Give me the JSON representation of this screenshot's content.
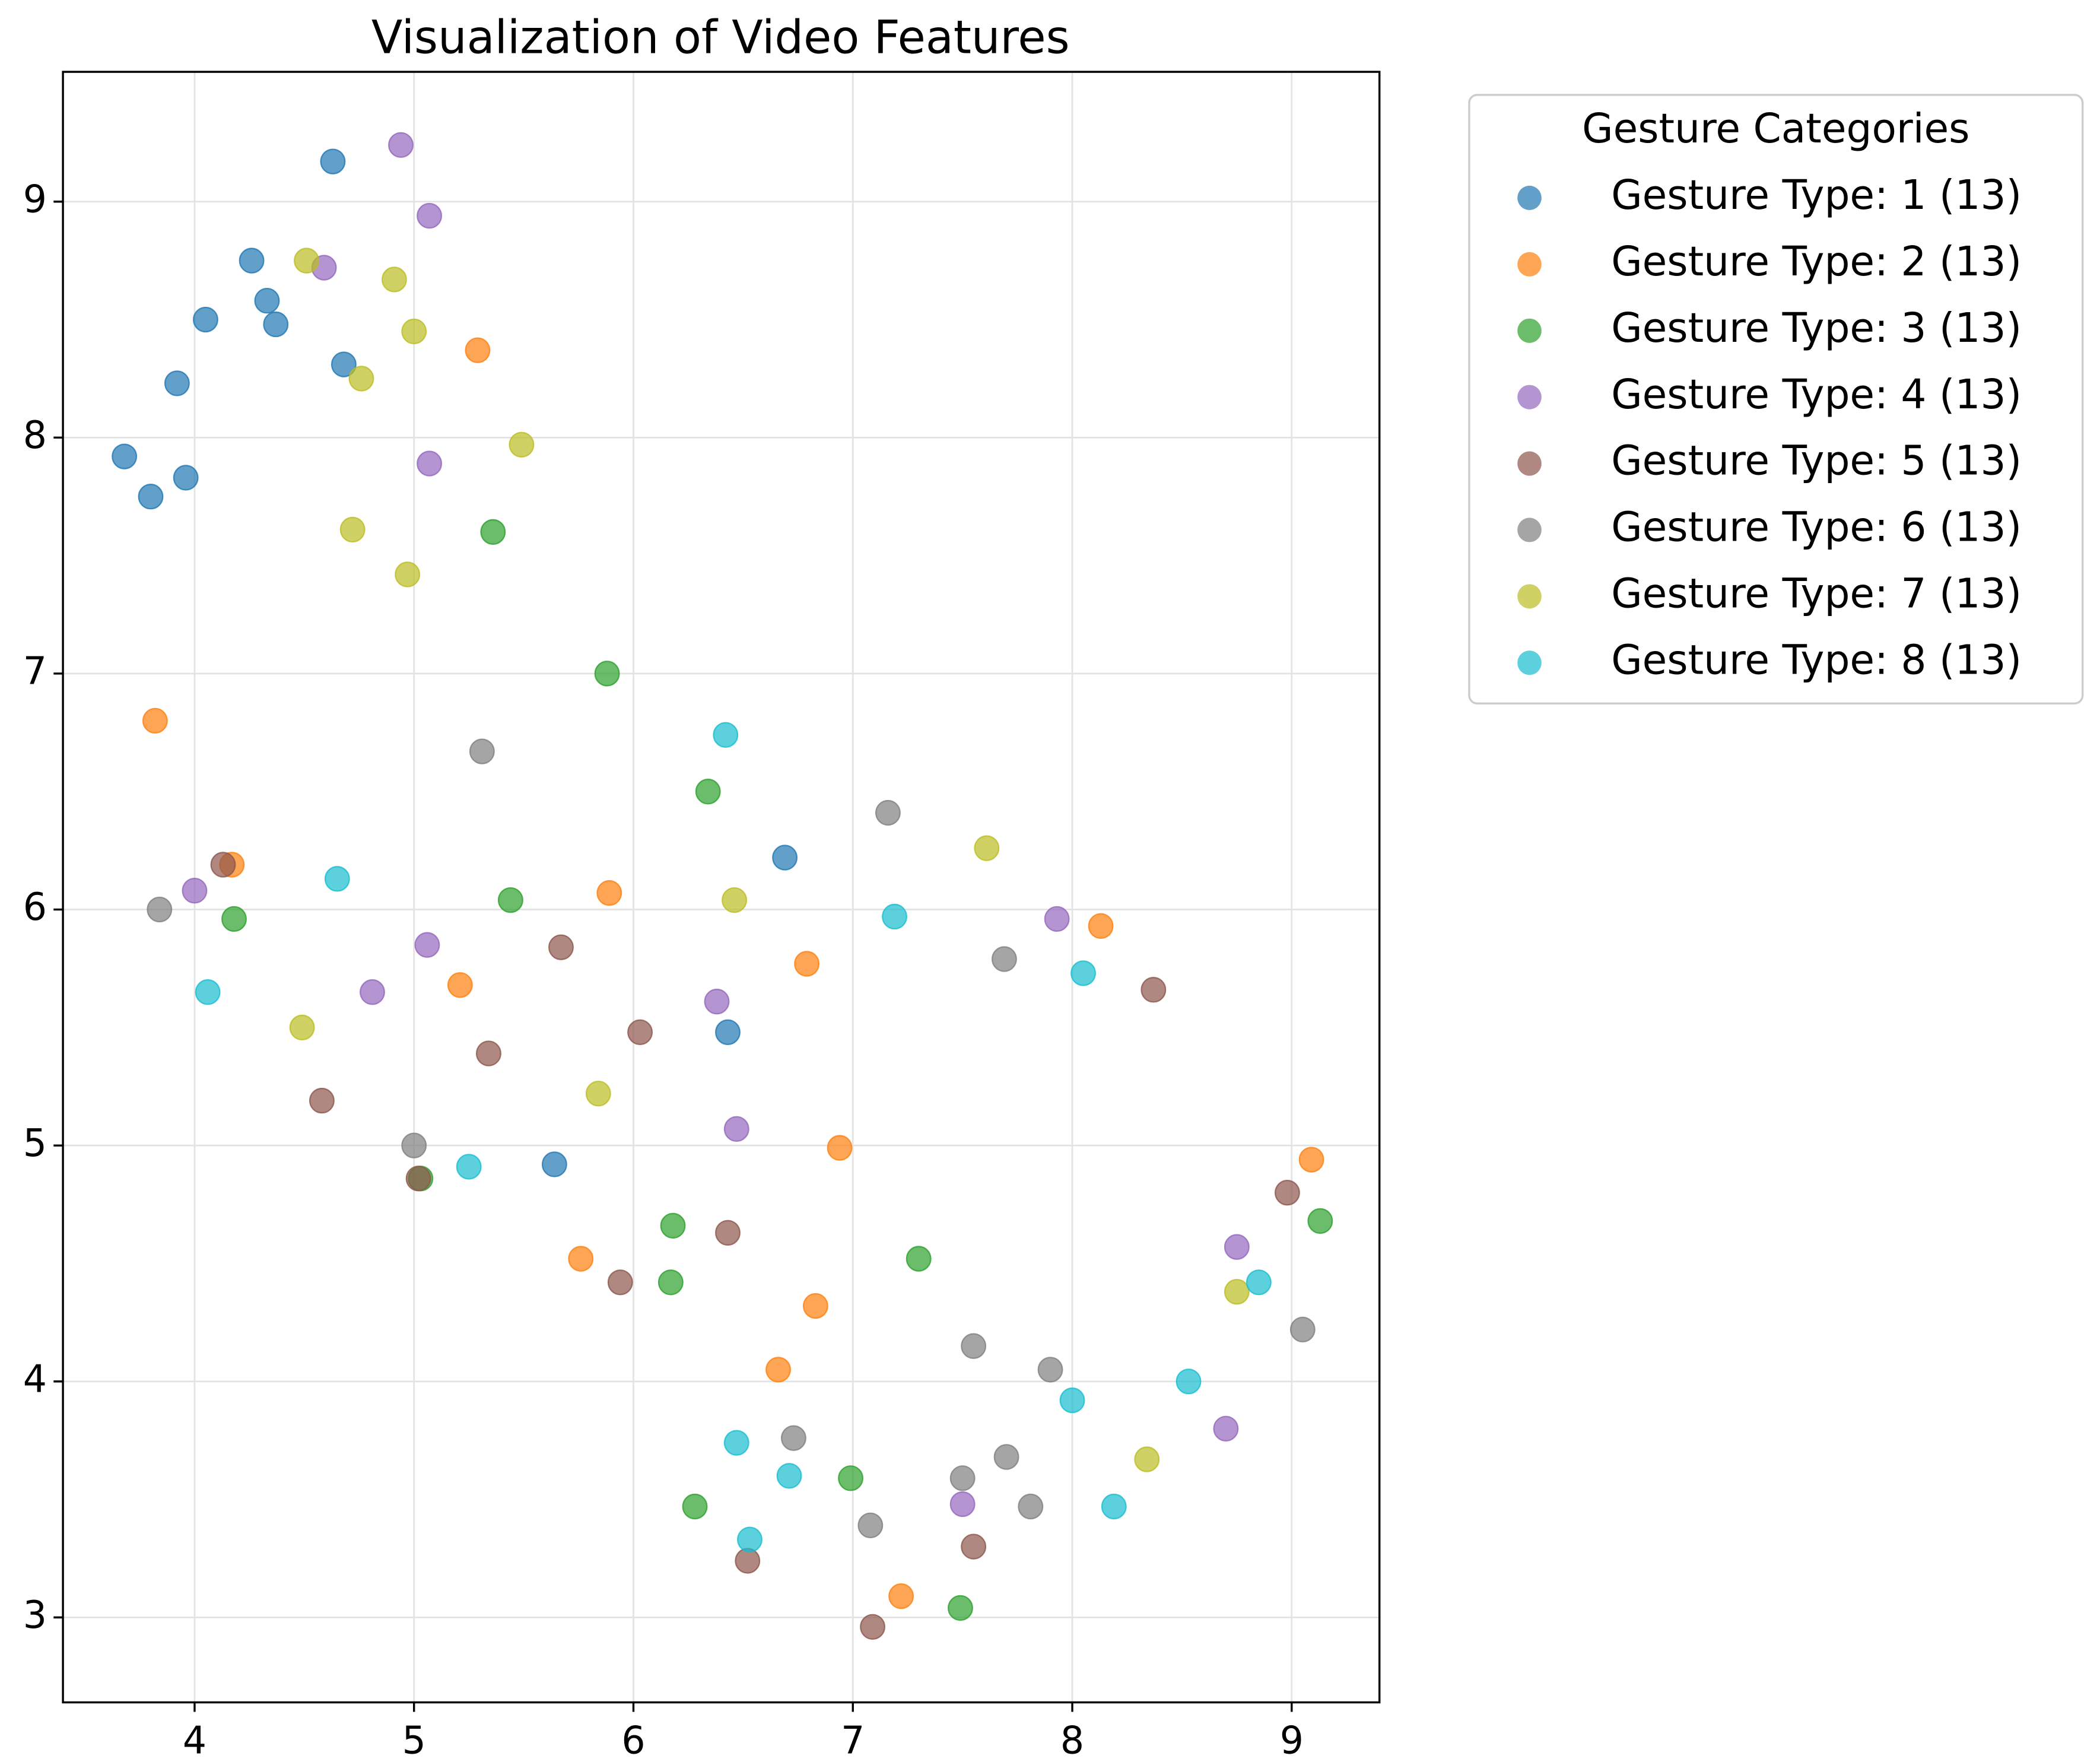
{
  "chart_data": {
    "type": "scatter",
    "title": "Visualization of Video Features",
    "legend_title": "Gesture Categories",
    "legend_position": "outside upper right",
    "grid": true,
    "xlim": [
      3.4,
      9.4
    ],
    "xticks": [
      4,
      5,
      6,
      7,
      8,
      9
    ],
    "ylim": [
      2.64,
      9.55
    ],
    "yticks": [
      3,
      4,
      5,
      6,
      7,
      8,
      9
    ],
    "series": [
      {
        "name": "Gesture Type: 1 (13)",
        "color": "#1f77b4",
        "x": [
          4.63,
          4.26,
          4.33,
          4.05,
          4.37,
          4.68,
          3.92,
          3.68,
          3.96,
          3.8,
          6.69,
          6.43,
          5.64
        ],
        "y": [
          9.17,
          8.75,
          8.58,
          8.5,
          8.48,
          8.31,
          8.23,
          7.92,
          7.83,
          7.75,
          6.22,
          5.48,
          4.92
        ]
      },
      {
        "name": "Gesture Type: 2 (13)",
        "color": "#ff7f0e",
        "x": [
          5.29,
          3.82,
          4.17,
          5.89,
          5.21,
          6.79,
          8.13,
          6.94,
          9.09,
          5.76,
          6.83,
          6.66,
          7.22
        ],
        "y": [
          8.37,
          6.8,
          6.19,
          6.07,
          5.68,
          5.77,
          5.93,
          4.99,
          4.94,
          4.52,
          4.32,
          4.05,
          3.09
        ]
      },
      {
        "name": "Gesture Type: 3 (13)",
        "color": "#2ca02c",
        "x": [
          5.36,
          5.88,
          6.34,
          5.44,
          4.18,
          5.03,
          6.18,
          6.17,
          7.3,
          9.13,
          6.99,
          6.28,
          7.49
        ],
        "y": [
          7.6,
          7.0,
          6.5,
          6.04,
          5.96,
          4.86,
          4.66,
          4.42,
          4.52,
          4.68,
          3.59,
          3.47,
          3.04
        ]
      },
      {
        "name": "Gesture Type: 4 (13)",
        "color": "#9467bd",
        "x": [
          4.94,
          5.07,
          4.59,
          5.07,
          4.0,
          5.06,
          4.81,
          6.38,
          7.93,
          6.47,
          8.75,
          8.7,
          7.5
        ],
        "y": [
          9.24,
          8.94,
          8.72,
          7.89,
          6.08,
          5.85,
          5.65,
          5.61,
          5.96,
          5.07,
          4.57,
          3.8,
          3.48
        ]
      },
      {
        "name": "Gesture Type: 5 (13)",
        "color": "#8c564b",
        "x": [
          4.13,
          5.67,
          6.03,
          5.34,
          4.58,
          5.02,
          5.94,
          6.43,
          8.37,
          8.98,
          7.55,
          6.52,
          7.09
        ],
        "y": [
          6.19,
          5.84,
          5.48,
          5.39,
          5.19,
          4.86,
          4.42,
          4.63,
          5.66,
          4.8,
          3.3,
          3.24,
          2.96
        ]
      },
      {
        "name": "Gesture Type: 6 (13)",
        "color": "#7f7f7f",
        "x": [
          5.31,
          7.16,
          3.84,
          7.69,
          5.0,
          7.55,
          7.9,
          9.05,
          6.73,
          7.7,
          7.5,
          7.81,
          7.08
        ],
        "y": [
          6.67,
          6.41,
          6.0,
          5.79,
          5.0,
          4.15,
          4.05,
          4.22,
          3.76,
          3.68,
          3.59,
          3.47,
          3.39
        ]
      },
      {
        "name": "Gesture Type: 7 (13)",
        "color": "#bcbd22",
        "x": [
          4.51,
          4.91,
          5.0,
          4.76,
          5.49,
          4.72,
          4.97,
          7.61,
          6.46,
          4.49,
          5.84,
          8.75,
          8.34
        ],
        "y": [
          8.75,
          8.67,
          8.45,
          8.25,
          7.97,
          7.61,
          7.42,
          6.26,
          6.04,
          5.5,
          5.22,
          4.38,
          3.67
        ]
      },
      {
        "name": "Gesture Type: 8 (13)",
        "color": "#17becf",
        "x": [
          6.42,
          4.65,
          7.19,
          8.05,
          4.06,
          5.25,
          8.85,
          8.53,
          8.0,
          6.47,
          6.71,
          8.19,
          6.53
        ],
        "y": [
          6.74,
          6.13,
          5.97,
          5.73,
          5.65,
          4.91,
          4.42,
          4.0,
          3.92,
          3.74,
          3.6,
          3.47,
          3.33
        ]
      }
    ]
  }
}
